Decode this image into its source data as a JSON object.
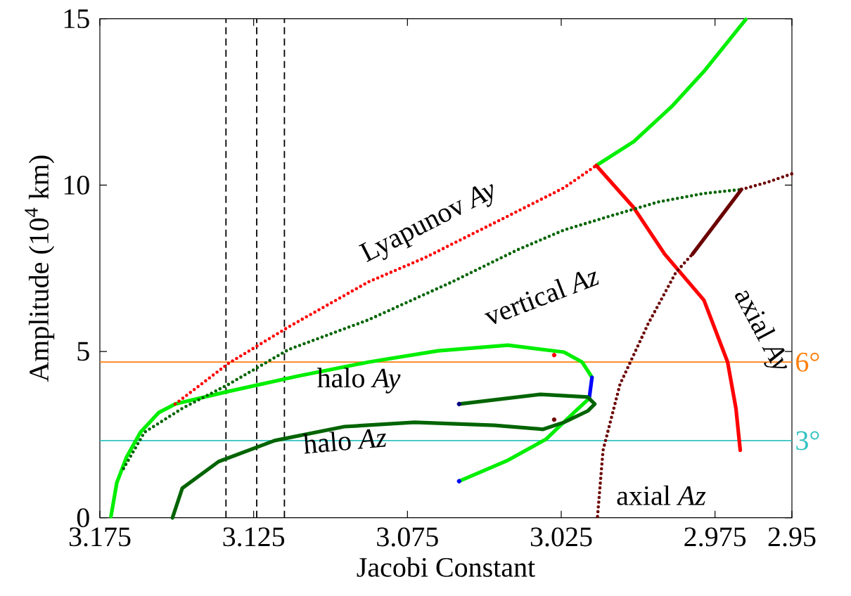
{
  "chart_data": {
    "type": "line",
    "xlabel": "Jacobi Constant",
    "ylabel": "Amplitude (10$^{4}$ km)",
    "xlim": [
      3.175,
      2.95
    ],
    "ylim": [
      0,
      15
    ],
    "xticks": [
      3.175,
      3.125,
      3.075,
      3.025,
      2.975,
      2.95
    ],
    "yticks": [
      0,
      5,
      10,
      15
    ],
    "series": [
      {
        "color": "#00ee00",
        "x": [
          3.1714,
          3.1695,
          3.1664,
          3.1618,
          3.1559,
          3.1505,
          3.1332,
          3.1105,
          3.0877,
          3.065,
          3.0423,
          3.0241,
          3.0182,
          3.015
        ],
        "values": [
          0.04,
          1.05,
          1.81,
          2.57,
          3.16,
          3.42,
          3.8,
          4.26,
          4.68,
          5.02,
          5.19,
          4.98,
          4.68,
          4.22
        ]
      },
      {
        "line_style": "dotted",
        "color": "#ff0000",
        "x": [
          3.1505,
          3.1332,
          3.1136,
          3.0877,
          3.0695,
          3.0423,
          3.0241,
          3.0136
        ],
        "values": [
          3.42,
          4.64,
          5.74,
          7.09,
          7.81,
          9.07,
          9.92,
          10.59
        ]
      },
      {
        "color": "#00ee00",
        "x": [
          3.0136,
          3.0014,
          2.9891,
          2.9786,
          2.965
        ],
        "values": [
          10.59,
          11.31,
          12.36,
          13.42,
          14.98
        ]
      },
      {
        "color": "#ff0000",
        "x": [
          3.0136,
          3.0014,
          2.9914,
          2.9786,
          2.9709,
          2.9682,
          2.9668
        ],
        "values": [
          10.59,
          9.32,
          7.93,
          6.54,
          4.68,
          3.29,
          2.03
        ]
      },
      {
        "line_style": "dotted",
        "color": "#006400",
        "x": [
          3.1673,
          3.1605,
          3.1482,
          3.1332,
          3.1136,
          3.0877,
          3.0605,
          3.0391,
          3.0241,
          3.0091,
          2.9936,
          2.9786,
          2.9664
        ],
        "values": [
          1.48,
          2.57,
          3.29,
          4.01,
          5.06,
          5.95,
          7.09,
          8.06,
          8.65,
          9.07,
          9.49,
          9.75,
          9.87
        ]
      },
      {
        "line_style": "dotted",
        "color": "#6b0000",
        "x": [
          3.0132,
          3.0114,
          3.0059,
          2.9968,
          2.9877,
          2.9823
        ],
        "values": [
          0.04,
          2.03,
          4.01,
          5.82,
          7.38,
          7.93
        ]
      },
      {
        "color": "#6b0000",
        "x": [
          2.9823,
          2.9664
        ],
        "values": [
          7.93,
          9.87
        ]
      },
      {
        "line_style": "dotted",
        "color": "#6b0000",
        "x": [
          2.9664,
          2.9582,
          2.95
        ],
        "values": [
          9.87,
          10.08,
          10.34
        ]
      },
      {
        "color": "#0000ff",
        "x": [
          3.015,
          3.0159
        ],
        "values": [
          4.22,
          3.59
        ]
      },
      {
        "color": "#00ee00",
        "x": [
          3.0159,
          3.0209,
          3.03,
          3.0423,
          3.0582
        ],
        "values": [
          3.59,
          3.16,
          2.36,
          1.73,
          1.1
        ]
      },
      {
        "color": "#006400",
        "x": [
          3.1514,
          3.1482,
          3.1364,
          3.1182,
          3.0955,
          3.0727,
          3.0468,
          3.0309,
          3.0241,
          3.0164,
          3.0141,
          3.0164,
          3.0318,
          3.0582
        ],
        "values": [
          0,
          0.89,
          1.69,
          2.32,
          2.74,
          2.87,
          2.78,
          2.66,
          2.87,
          3.21,
          3.42,
          3.63,
          3.71,
          3.42
        ]
      },
      {
        "type": "scatter",
        "marker": "circle",
        "color": "#0000ff",
        "x": [
          3.0582
        ],
        "values": [
          1.1
        ]
      },
      {
        "type": "scatter",
        "marker": "circle",
        "color": "#000080",
        "x": [
          3.0582
        ],
        "values": [
          3.42
        ]
      },
      {
        "type": "scatter",
        "marker": "circle",
        "color": "#ff0000",
        "x": [
          3.0273
        ],
        "values": [
          4.89
        ]
      },
      {
        "type": "scatter",
        "marker": "circle",
        "color": "#6b0000",
        "x": [
          3.0273
        ],
        "values": [
          2.95
        ]
      }
    ],
    "ref_lines": [
      {
        "axis": "y",
        "value": 4.68,
        "color": "#ff7f0e"
      },
      {
        "axis": "y",
        "value": 2.32,
        "color": "#33c2c2"
      },
      {
        "axis": "x",
        "value": 3.134,
        "color": "#000000",
        "line_style": "dashed"
      },
      {
        "axis": "x",
        "value": 3.124,
        "color": "#000000",
        "line_style": "dashed"
      },
      {
        "axis": "x",
        "value": 3.115,
        "color": "#000000",
        "line_style": "dashed"
      }
    ],
    "annotations": [
      "Lyapunov *Ay*",
      "vertical *Az*",
      "halo *Ay*",
      "halo *Az*",
      "axial *Ay*",
      "axial *Az*",
      {
        "text": "6°",
        "x": 2.95,
        "y": 4.68
      },
      {
        "text": "3°",
        "x": 2.95,
        "y": 2.32
      }
    ]
  }
}
